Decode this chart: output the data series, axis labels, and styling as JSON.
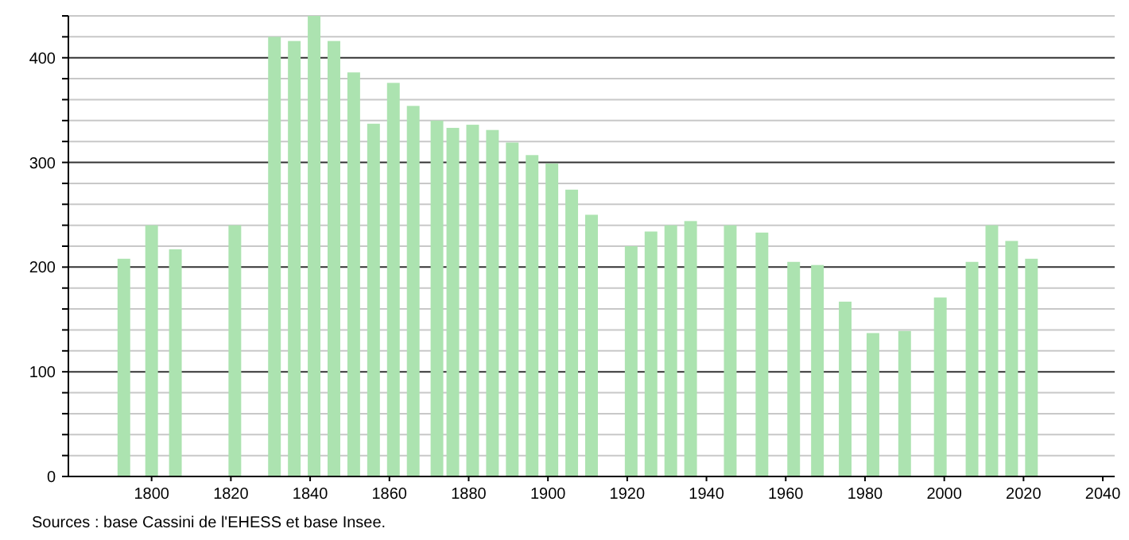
{
  "chart_data": {
    "type": "bar",
    "x": [
      1793,
      1800,
      1806,
      1821,
      1831,
      1836,
      1841,
      1846,
      1851,
      1856,
      1861,
      1866,
      1872,
      1876,
      1881,
      1886,
      1891,
      1896,
      1901,
      1906,
      1911,
      1921,
      1926,
      1931,
      1936,
      1946,
      1954,
      1962,
      1968,
      1975,
      1982,
      1990,
      1999,
      2007,
      2012,
      2017,
      2022
    ],
    "values": [
      208,
      240,
      217,
      240,
      420,
      416,
      440,
      416,
      386,
      337,
      376,
      354,
      340,
      333,
      336,
      331,
      319,
      307,
      299,
      274,
      250,
      220,
      234,
      240,
      244,
      240,
      233,
      205,
      202,
      167,
      137,
      139,
      171,
      205,
      240,
      225,
      208
    ],
    "color": "#ace3b0",
    "xlim": [
      1779,
      2043
    ],
    "xticks": [
      1800,
      1820,
      1840,
      1860,
      1880,
      1900,
      1920,
      1940,
      1960,
      1980,
      2000,
      2020,
      2040
    ],
    "ylim": [
      0,
      440
    ],
    "yticks": [
      0,
      {
        "value": 20,
        "label": null
      },
      {
        "value": 40,
        "label": null
      },
      {
        "value": 60,
        "label": null
      },
      {
        "value": 80,
        "label": null
      },
      100,
      {
        "value": 120,
        "label": null
      },
      {
        "value": 140,
        "label": null
      },
      {
        "value": 160,
        "label": null
      },
      {
        "value": 180,
        "label": null
      },
      200,
      {
        "value": 220,
        "label": null
      },
      {
        "value": 240,
        "label": null
      },
      {
        "value": 260,
        "label": null
      },
      {
        "value": 280,
        "label": null
      },
      300,
      {
        "value": 320,
        "label": null
      },
      {
        "value": 340,
        "label": null
      },
      {
        "value": 360,
        "label": null
      },
      {
        "value": 380,
        "label": null
      },
      400,
      {
        "value": 420,
        "label": null
      },
      {
        "value": 440,
        "label": null
      }
    ],
    "grid": true,
    "annotations": [
      "Sources : base Cassini de l'EHESS et base Insee."
    ]
  }
}
